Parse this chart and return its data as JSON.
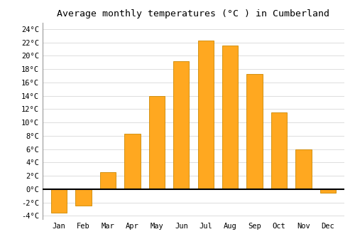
{
  "title": "Average monthly temperatures (°C ) in Cumberland",
  "months": [
    "Jan",
    "Feb",
    "Mar",
    "Apr",
    "May",
    "Jun",
    "Jul",
    "Aug",
    "Sep",
    "Oct",
    "Nov",
    "Dec"
  ],
  "values": [
    -3.5,
    -2.5,
    2.5,
    8.3,
    14.0,
    19.2,
    22.3,
    21.5,
    17.3,
    11.5,
    6.0,
    -0.5
  ],
  "bar_color": "#FFA820",
  "bar_edge_color": "#CC8800",
  "ylim": [
    -4.5,
    25
  ],
  "yticks": [
    -4,
    -2,
    0,
    2,
    4,
    6,
    8,
    10,
    12,
    14,
    16,
    18,
    20,
    22,
    24
  ],
  "ytick_labels": [
    "-4°C",
    "-2°C",
    "0°C",
    "2°C",
    "4°C",
    "6°C",
    "8°C",
    "10°C",
    "12°C",
    "14°C",
    "16°C",
    "18°C",
    "20°C",
    "22°C",
    "24°C"
  ],
  "background_color": "#ffffff",
  "grid_color": "#dddddd",
  "title_fontsize": 9.5,
  "tick_fontsize": 7.5
}
